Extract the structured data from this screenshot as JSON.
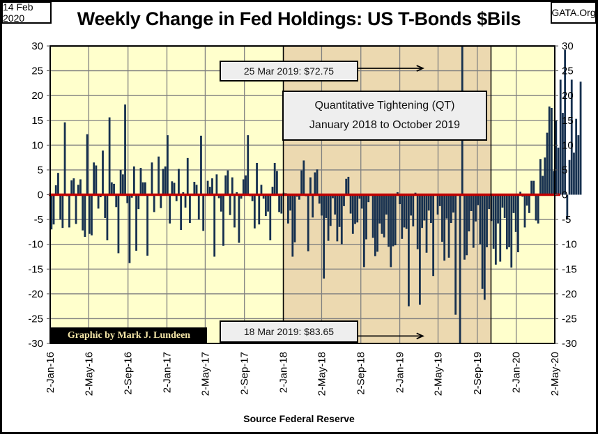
{
  "header": {
    "date": "14 Feb 2020",
    "site": "GATA.Org",
    "title": "Weekly Change in Fed Holdings: US T-Bonds $Bils"
  },
  "credit": "Graphic by Mark J. Lundeen",
  "source": "Source Federal Reserve",
  "annotations": {
    "top": "25 Mar 2019: $72.75",
    "bottom": "18 Mar 2019: $83.65",
    "qt_line1": "Quantitative Tightening (QT)",
    "qt_line2": "January 2018 to October 2019"
  },
  "colors": {
    "bar": "#16304f",
    "zero_line": "#c00000",
    "plot_bg": "#ffffcc",
    "qt_bg": "#ecd9b0",
    "grid": "#808080"
  },
  "chart_data": {
    "type": "bar",
    "title": "Weekly Change in Fed Holdings: US T-Bonds $Bils",
    "xlabel": "Source Federal Reserve",
    "ylabel": "",
    "ylim": [
      -30,
      30
    ],
    "yticks": [
      30,
      25,
      20,
      15,
      10,
      5,
      0,
      -5,
      -10,
      -15,
      -20,
      -25,
      -30
    ],
    "xlim": [
      "2016-01-02",
      "2020-05-02"
    ],
    "xtick_labels": [
      "2-Jan-16",
      "2-May-16",
      "2-Sep-16",
      "2-Jan-17",
      "2-May-17",
      "2-Sep-17",
      "2-Jan-18",
      "2-May-18",
      "2-Sep-18",
      "2-Jan-19",
      "2-May-19",
      "2-Sep-19",
      "2-Jan-20",
      "2-May-20"
    ],
    "xtick_dates": [
      "2016-01-02",
      "2016-05-02",
      "2016-09-02",
      "2017-01-02",
      "2017-05-02",
      "2017-09-02",
      "2018-01-02",
      "2018-05-02",
      "2018-09-02",
      "2019-01-02",
      "2019-05-02",
      "2019-09-02",
      "2020-01-02",
      "2020-05-02"
    ],
    "grid": true,
    "shaded_region": {
      "label": "Quantitative Tightening (QT)",
      "start": "2018-01-02",
      "end": "2019-10-15"
    },
    "first_week": "2016-01-06",
    "series": [
      {
        "name": "Weekly change in US T-Bonds ($Bils)",
        "values": [
          -7,
          -6,
          1.9,
          4.4,
          -5,
          -6.7,
          14.6,
          -0.3,
          -6.6,
          2.9,
          3.3,
          -5.9,
          2,
          3.1,
          -7.2,
          -8.5,
          12.2,
          -7.9,
          -8.2,
          6.5,
          5.9,
          -2.8,
          -0.5,
          8.9,
          -4.7,
          -9.2,
          15.6,
          2.5,
          2.2,
          -2.5,
          -11.8,
          5,
          4.1,
          18.2,
          -1.7,
          -13.8,
          -0.6,
          5.7,
          -11.3,
          -2.9,
          5.4,
          2.5,
          2.5,
          -12.3,
          -0.2,
          6.5,
          -3.5,
          -0.1,
          7.7,
          -2.7,
          5.2,
          5.7,
          12,
          -5.8,
          2.7,
          2.4,
          -1.3,
          5.2,
          -7.1,
          0.5,
          -2.6,
          7.4,
          -5.7,
          -0.1,
          2.6,
          2,
          -5,
          11.9,
          -7.3,
          0.2,
          2.8,
          1.6,
          3.3,
          -12.5,
          4.1,
          -0.7,
          -3.4,
          -10.3,
          3.9,
          4.9,
          -4.1,
          3.5,
          -6.6,
          0.5,
          -9.7,
          -0.8,
          3.1,
          3.9,
          12,
          -0.3,
          -1.3,
          -6.8,
          6.4,
          -6,
          2,
          -0.8,
          -4.3,
          -3.4,
          -9.2,
          1.6,
          6.4,
          4.8,
          -3.5,
          -3.8,
          0.4,
          0.3,
          -5.8,
          -3.2,
          -12.5,
          -9.6,
          -0.4,
          -1,
          4.9,
          6.9,
          -0.3,
          -11.4,
          3.5,
          -4.6,
          4.5,
          5.1,
          -1.8,
          -4.2,
          -16.9,
          -4.7,
          -9.3,
          -6.3,
          -0.7,
          -4,
          -9.4,
          -6.5,
          -10,
          -2.3,
          3.2,
          3.6,
          -3.8,
          -7.9,
          -5.9,
          -5.6,
          -0.8,
          -2.8,
          -14.6,
          -9,
          -1.5,
          -0.1,
          -8.7,
          -12.4,
          -11.5,
          -5.8,
          -7.9,
          -8.6,
          -4,
          -10.5,
          -14.6,
          -10.4,
          -10.2,
          0.5,
          -1.9,
          -8.9,
          -6.6,
          -6.9,
          -22.5,
          -4.2,
          -6.4,
          0.4,
          -11,
          -22.2,
          -6.7,
          -5.2,
          -11.7,
          -3.2,
          -5.7,
          -16.4,
          -0.1,
          -4,
          -2.3,
          -9.5,
          -13.3,
          -4.8,
          -12.7,
          -5.7,
          -3.6,
          -24.2,
          -0.1,
          -83.65,
          72.75,
          -13.1,
          -12.2,
          -7.4,
          -3.3,
          -10.7,
          -5.4,
          -2.1,
          -10,
          -19,
          -21.2,
          -10.6,
          -2.9,
          -5.3,
          -10.9,
          -14.1,
          -5.8,
          -13.5,
          -2.6,
          -4.7,
          -11,
          -10.6,
          -14.7,
          -3.7,
          -7.5,
          -11.6,
          0.6,
          -0.4,
          -6.6,
          -2.2,
          -3.7,
          2.8,
          2.8,
          -5.2,
          -5.8,
          7.2,
          3.8,
          7.5,
          12.5,
          17.8,
          17.5,
          4.8,
          15,
          9.5,
          23.2,
          16.5,
          29.2,
          -5,
          7,
          23.2,
          8.5,
          15.3,
          12,
          22.8
        ]
      }
    ]
  }
}
